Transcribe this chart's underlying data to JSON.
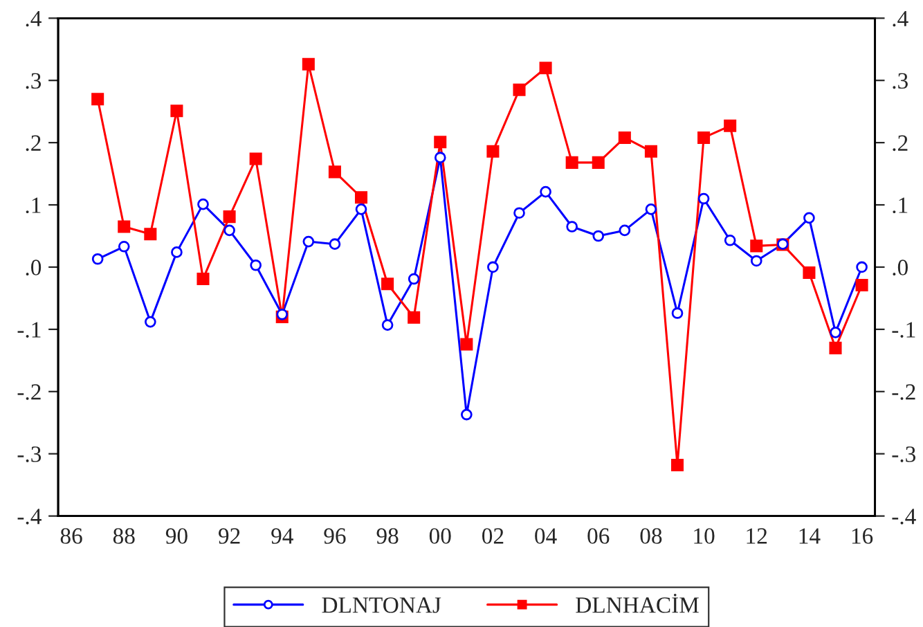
{
  "chart_data": {
    "type": "line",
    "categories": [
      "86",
      null,
      "88",
      null,
      "90",
      null,
      "92",
      null,
      "94",
      null,
      "96",
      null,
      "98",
      null,
      "00",
      null,
      "02",
      null,
      "04",
      null,
      "06",
      null,
      "08",
      null,
      "10",
      null,
      "12",
      null,
      "14",
      null,
      "16"
    ],
    "series": [
      {
        "name": "DLNTONAJ",
        "color": "#0000ff",
        "marker": "circle",
        "values": [
          null,
          0.013,
          0.033,
          -0.088,
          0.024,
          0.101,
          0.059,
          0.003,
          -0.076,
          0.041,
          0.037,
          0.093,
          -0.093,
          -0.019,
          0.176,
          -0.237,
          0.0,
          0.087,
          0.121,
          0.065,
          0.05,
          0.059,
          0.093,
          -0.074,
          0.11,
          0.043,
          0.01,
          0.037,
          0.079,
          -0.105,
          0.0
        ]
      },
      {
        "name": "DLNHACİM",
        "color": "#ff0000",
        "marker": "square",
        "values": [
          null,
          0.27,
          0.065,
          0.053,
          0.251,
          -0.019,
          0.081,
          0.174,
          -0.08,
          0.326,
          0.153,
          0.112,
          -0.027,
          -0.081,
          0.201,
          -0.124,
          0.186,
          0.285,
          0.32,
          0.168,
          0.168,
          0.208,
          0.186,
          -0.318,
          0.208,
          0.227,
          0.034,
          0.036,
          -0.009,
          -0.13,
          -0.029
        ]
      }
    ],
    "ylim": [
      -0.4,
      0.4
    ],
    "yticks": [
      {
        "value": -0.4,
        "label": "-.4"
      },
      {
        "value": -0.3,
        "label": "-.3"
      },
      {
        "value": -0.2,
        "label": "-.2"
      },
      {
        "value": -0.1,
        "label": "-.1"
      },
      {
        "value": 0.0,
        "label": ".0"
      },
      {
        "value": 0.1,
        "label": ".1"
      },
      {
        "value": 0.2,
        "label": ".2"
      },
      {
        "value": 0.3,
        "label": ".3"
      },
      {
        "value": 0.4,
        "label": ".4"
      }
    ],
    "y2lim": [
      -0.4,
      0.4
    ],
    "y2ticks": [
      {
        "value": -0.4,
        "label": "-.4"
      },
      {
        "value": -0.3,
        "label": "-.3"
      },
      {
        "value": -0.2,
        "label": "-.2"
      },
      {
        "value": -0.1,
        "label": "-.1"
      },
      {
        "value": 0.0,
        "label": ".0"
      },
      {
        "value": 0.1,
        "label": ".1"
      },
      {
        "value": 0.2,
        "label": ".2"
      },
      {
        "value": 0.3,
        "label": ".3"
      },
      {
        "value": 0.4,
        "label": ".4"
      }
    ],
    "grid": false,
    "legend": "bottom",
    "line_style": "solid"
  }
}
